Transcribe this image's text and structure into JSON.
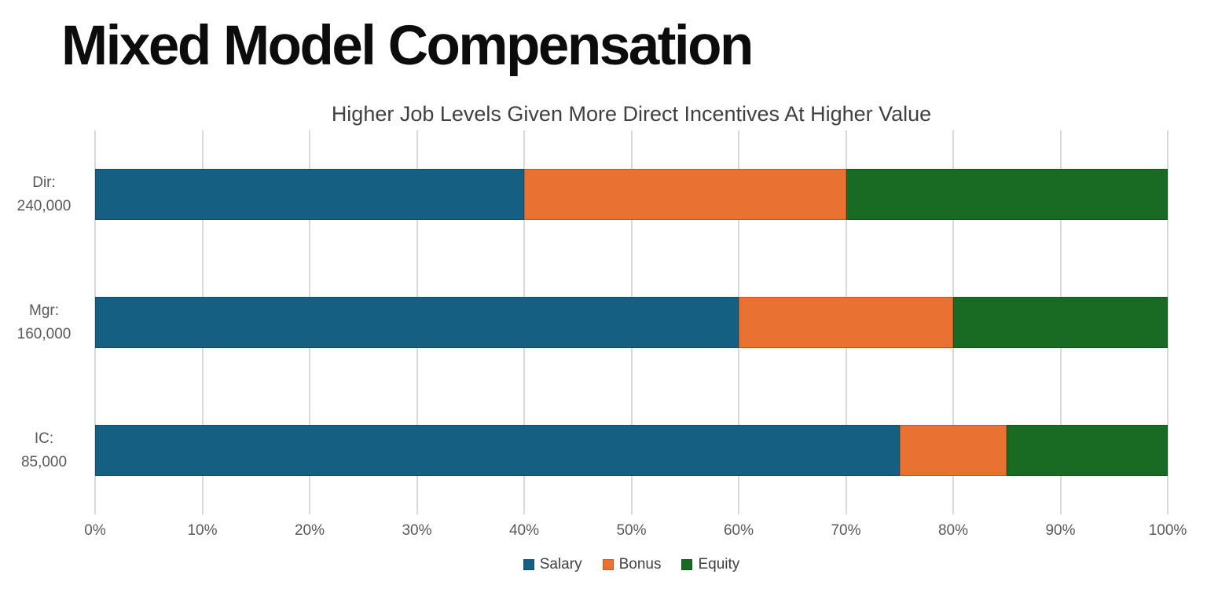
{
  "header": {
    "title": "Mixed Model Compensation"
  },
  "chart_data": {
    "type": "bar",
    "orientation": "horizontal",
    "stacked": true,
    "title": "Higher Job Levels Given More Direct Incentives At Higher Value",
    "categories": [
      {
        "id": "dir",
        "lines": [
          "Dir:",
          "240,000"
        ]
      },
      {
        "id": "mgr",
        "lines": [
          "Mgr:",
          "160,000"
        ]
      },
      {
        "id": "ic",
        "lines": [
          "IC:",
          "85,000"
        ]
      }
    ],
    "series": [
      {
        "name": "Salary",
        "color": "#156082",
        "border_color": "#11506C",
        "values": [
          40,
          60,
          75
        ]
      },
      {
        "name": "Bonus",
        "color": "#E97132",
        "border_color": "#C25A20",
        "values": [
          30,
          20,
          10
        ]
      },
      {
        "name": "Equity",
        "color": "#196B24",
        "border_color": "#14571D",
        "values": [
          30,
          20,
          15
        ]
      }
    ],
    "x_ticks": [
      "0%",
      "10%",
      "20%",
      "30%",
      "40%",
      "50%",
      "60%",
      "70%",
      "80%",
      "90%",
      "100%"
    ],
    "xlim": [
      0,
      100
    ],
    "grid": true,
    "legend_position": "bottom",
    "style": {
      "gridline_color": "#D9D9D9",
      "axis_text_color": "#595959",
      "subtitle_text_color": "#404040",
      "legend_text_color": "#404040",
      "background": "#FFFFFF"
    }
  }
}
